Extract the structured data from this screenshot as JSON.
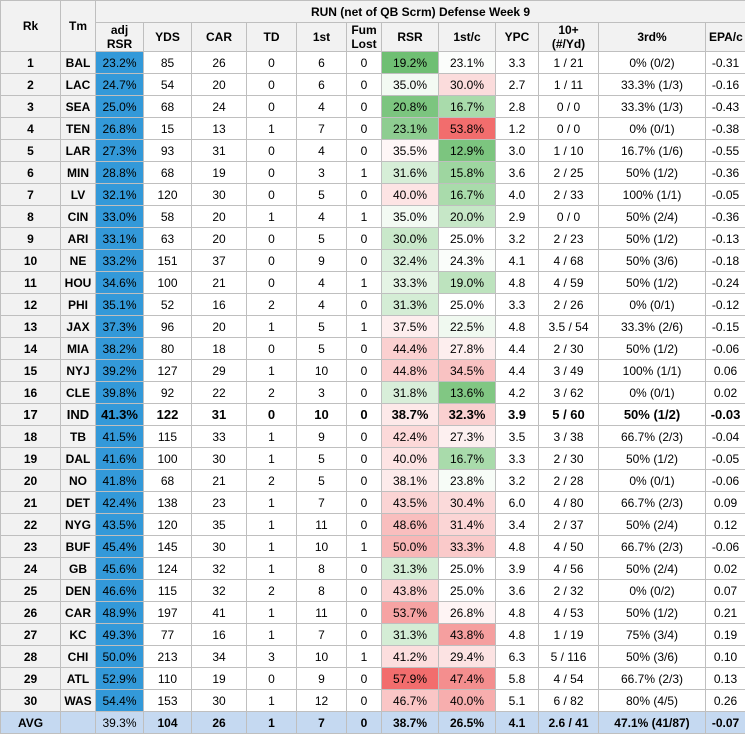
{
  "title": "RUN (net of QB Scrm) Defense Week 9",
  "headers": {
    "rk": "Rk",
    "tm": "Tm",
    "adj_rsr_1": "adj",
    "adj_rsr_2": "RSR",
    "yds": "YDS",
    "car": "CAR",
    "td": "TD",
    "first": "1st",
    "fum_1": "Fum",
    "fum_2": "Lost",
    "rsr": "RSR",
    "first_c": "1st/c",
    "ypc": "YPC",
    "ten_1": "10+",
    "ten_2": "(#/Yd)",
    "third": "3rd%",
    "epa": "EPA/c"
  },
  "rows": [
    {
      "rk": "1",
      "tm": "BAL",
      "adj": "23.2%",
      "yds": "85",
      "car": "26",
      "td": "0",
      "first": "6",
      "fum": "0",
      "rsr": "19.2%",
      "fc": "23.1%",
      "ypc": "3.3",
      "ten": "1 / 21",
      "third": "0% (0/2)",
      "epa": "-0.31",
      "rsr_bg": "#6fbf73",
      "fc_bg": "#fbfdfb"
    },
    {
      "rk": "2",
      "tm": "LAC",
      "adj": "24.7%",
      "yds": "54",
      "car": "20",
      "td": "0",
      "first": "6",
      "fum": "0",
      "rsr": "35.0%",
      "fc": "30.0%",
      "ypc": "2.7",
      "ten": "1 / 11",
      "third": "33.3% (1/3)",
      "epa": "-0.16",
      "rsr_bg": "#f3faf3",
      "fc_bg": "#fbdcdc"
    },
    {
      "rk": "3",
      "tm": "SEA",
      "adj": "25.0%",
      "yds": "68",
      "car": "24",
      "td": "0",
      "first": "4",
      "fum": "0",
      "rsr": "20.8%",
      "fc": "16.7%",
      "ypc": "2.8",
      "ten": "0 / 0",
      "third": "33.3% (1/3)",
      "epa": "-0.43",
      "rsr_bg": "#7cc57f",
      "fc_bg": "#a9dbab"
    },
    {
      "rk": "4",
      "tm": "TEN",
      "adj": "26.8%",
      "yds": "15",
      "car": "13",
      "td": "1",
      "first": "7",
      "fum": "0",
      "rsr": "23.1%",
      "fc": "53.8%",
      "ypc": "1.2",
      "ten": "0 / 0",
      "third": "0% (0/1)",
      "epa": "-0.38",
      "rsr_bg": "#8ecd91",
      "fc_bg": "#f26d6d"
    },
    {
      "rk": "5",
      "tm": "LAR",
      "adj": "27.3%",
      "yds": "93",
      "car": "31",
      "td": "0",
      "first": "4",
      "fum": "0",
      "rsr": "35.5%",
      "fc": "12.9%",
      "ypc": "3.0",
      "ten": "1 / 10",
      "third": "16.7% (1/6)",
      "epa": "-0.55",
      "rsr_bg": "#fef6f6",
      "fc_bg": "#7cc57f"
    },
    {
      "rk": "6",
      "tm": "MIN",
      "adj": "28.8%",
      "yds": "68",
      "car": "19",
      "td": "0",
      "first": "3",
      "fum": "1",
      "rsr": "31.6%",
      "fc": "15.8%",
      "ypc": "3.6",
      "ten": "2 / 25",
      "third": "50% (1/2)",
      "epa": "-0.36",
      "rsr_bg": "#d6eed7",
      "fc_bg": "#9ed6a0"
    },
    {
      "rk": "7",
      "tm": "LV",
      "adj": "32.1%",
      "yds": "120",
      "car": "30",
      "td": "0",
      "first": "5",
      "fum": "0",
      "rsr": "40.0%",
      "fc": "16.7%",
      "ypc": "4.0",
      "ten": "2 / 33",
      "third": "100% (1/1)",
      "epa": "-0.05",
      "rsr_bg": "#fde4e4",
      "fc_bg": "#a9dbab"
    },
    {
      "rk": "8",
      "tm": "CIN",
      "adj": "33.0%",
      "yds": "58",
      "car": "20",
      "td": "1",
      "first": "4",
      "fum": "1",
      "rsr": "35.0%",
      "fc": "20.0%",
      "ypc": "2.9",
      "ten": "0 / 0",
      "third": "50% (2/4)",
      "epa": "-0.36",
      "rsr_bg": "#f3faf3",
      "fc_bg": "#c6e7c7"
    },
    {
      "rk": "9",
      "tm": "ARI",
      "adj": "33.1%",
      "yds": "63",
      "car": "20",
      "td": "0",
      "first": "5",
      "fum": "0",
      "rsr": "30.0%",
      "fc": "25.0%",
      "ypc": "3.2",
      "ten": "2 / 23",
      "third": "50% (1/2)",
      "epa": "-0.13",
      "rsr_bg": "#c9e8ca",
      "fc_bg": "#ffffff"
    },
    {
      "rk": "10",
      "tm": "NE",
      "adj": "33.2%",
      "yds": "151",
      "car": "37",
      "td": "0",
      "first": "9",
      "fum": "0",
      "rsr": "32.4%",
      "fc": "24.3%",
      "ypc": "4.1",
      "ten": "4 / 68",
      "third": "50% (3/6)",
      "epa": "-0.18",
      "rsr_bg": "#dcf0dd",
      "fc_bg": "#fafdfa"
    },
    {
      "rk": "11",
      "tm": "HOU",
      "adj": "34.6%",
      "yds": "100",
      "car": "21",
      "td": "0",
      "first": "4",
      "fum": "1",
      "rsr": "33.3%",
      "fc": "19.0%",
      "ypc": "4.8",
      "ten": "4 / 59",
      "third": "50% (1/2)",
      "epa": "-0.24",
      "rsr_bg": "#e5f4e5",
      "fc_bg": "#bde3be"
    },
    {
      "rk": "12",
      "tm": "PHI",
      "adj": "35.1%",
      "yds": "52",
      "car": "16",
      "td": "2",
      "first": "4",
      "fum": "0",
      "rsr": "31.3%",
      "fc": "25.0%",
      "ypc": "3.3",
      "ten": "2 / 26",
      "third": "0% (0/1)",
      "epa": "-0.12",
      "rsr_bg": "#d4edd5",
      "fc_bg": "#ffffff"
    },
    {
      "rk": "13",
      "tm": "JAX",
      "adj": "37.3%",
      "yds": "96",
      "car": "20",
      "td": "1",
      "first": "5",
      "fum": "1",
      "rsr": "37.5%",
      "fc": "22.5%",
      "ypc": "4.8",
      "ten": "3.5 / 54",
      "third": "33.3% (2/6)",
      "epa": "-0.15",
      "rsr_bg": "#fdeeee",
      "fc_bg": "#f0f9f0"
    },
    {
      "rk": "14",
      "tm": "MIA",
      "adj": "38.2%",
      "yds": "80",
      "car": "18",
      "td": "0",
      "first": "5",
      "fum": "0",
      "rsr": "44.4%",
      "fc": "27.8%",
      "ypc": "4.4",
      "ten": "2 / 30",
      "third": "50% (1/2)",
      "epa": "-0.06",
      "rsr_bg": "#fbd0d0",
      "fc_bg": "#fdeeee"
    },
    {
      "rk": "15",
      "tm": "NYJ",
      "adj": "39.2%",
      "yds": "127",
      "car": "29",
      "td": "1",
      "first": "10",
      "fum": "0",
      "rsr": "44.8%",
      "fc": "34.5%",
      "ypc": "4.4",
      "ten": "3 / 49",
      "third": "100% (1/1)",
      "epa": "0.06",
      "rsr_bg": "#fbcece",
      "fc_bg": "#f9c2c2"
    },
    {
      "rk": "16",
      "tm": "CLE",
      "adj": "39.8%",
      "yds": "92",
      "car": "22",
      "td": "2",
      "first": "3",
      "fum": "0",
      "rsr": "31.8%",
      "fc": "13.6%",
      "ypc": "4.2",
      "ten": "3 / 62",
      "third": "0% (0/1)",
      "epa": "0.02",
      "rsr_bg": "#d8eed9",
      "fc_bg": "#81c783"
    },
    {
      "rk": "17",
      "tm": "IND",
      "adj": "41.3%",
      "yds": "122",
      "car": "31",
      "td": "0",
      "first": "10",
      "fum": "0",
      "rsr": "38.7%",
      "fc": "32.3%",
      "ypc": "3.9",
      "ten": "5 / 60",
      "third": "50% (1/2)",
      "epa": "-0.03",
      "rsr_bg": "#fde9e9",
      "fc_bg": "#fad0d0",
      "hl": true
    },
    {
      "rk": "18",
      "tm": "TB",
      "adj": "41.5%",
      "yds": "115",
      "car": "33",
      "td": "1",
      "first": "9",
      "fum": "0",
      "rsr": "42.4%",
      "fc": "27.3%",
      "ypc": "3.5",
      "ten": "3 / 38",
      "third": "66.7% (2/3)",
      "epa": "-0.04",
      "rsr_bg": "#fcd9d9",
      "fc_bg": "#fdf0f0"
    },
    {
      "rk": "19",
      "tm": "DAL",
      "adj": "41.6%",
      "yds": "100",
      "car": "30",
      "td": "1",
      "first": "5",
      "fum": "0",
      "rsr": "40.0%",
      "fc": "16.7%",
      "ypc": "3.3",
      "ten": "2 / 30",
      "third": "50% (1/2)",
      "epa": "-0.05",
      "rsr_bg": "#fde4e4",
      "fc_bg": "#a9dbab"
    },
    {
      "rk": "20",
      "tm": "NO",
      "adj": "41.8%",
      "yds": "68",
      "car": "21",
      "td": "2",
      "first": "5",
      "fum": "0",
      "rsr": "38.1%",
      "fc": "23.8%",
      "ypc": "3.2",
      "ten": "2 / 28",
      "third": "0% (0/1)",
      "epa": "-0.06",
      "rsr_bg": "#fdebeb",
      "fc_bg": "#f7fcf7"
    },
    {
      "rk": "21",
      "tm": "DET",
      "adj": "42.4%",
      "yds": "138",
      "car": "23",
      "td": "1",
      "first": "7",
      "fum": "0",
      "rsr": "43.5%",
      "fc": "30.4%",
      "ypc": "6.0",
      "ten": "4 / 80",
      "third": "66.7% (2/3)",
      "epa": "0.09",
      "rsr_bg": "#fbd4d4",
      "fc_bg": "#fbdada"
    },
    {
      "rk": "22",
      "tm": "NYG",
      "adj": "43.5%",
      "yds": "120",
      "car": "35",
      "td": "1",
      "first": "11",
      "fum": "0",
      "rsr": "48.6%",
      "fc": "31.4%",
      "ypc": "3.4",
      "ten": "2 / 37",
      "third": "50% (2/4)",
      "epa": "0.12",
      "rsr_bg": "#f9bebe",
      "fc_bg": "#fbd5d5"
    },
    {
      "rk": "23",
      "tm": "BUF",
      "adj": "45.4%",
      "yds": "145",
      "car": "30",
      "td": "1",
      "first": "10",
      "fum": "1",
      "rsr": "50.0%",
      "fc": "33.3%",
      "ypc": "4.8",
      "ten": "4 / 50",
      "third": "66.7% (2/3)",
      "epa": "-0.06",
      "rsr_bg": "#f8b7b7",
      "fc_bg": "#faca ca"
    },
    {
      "rk": "24",
      "tm": "GB",
      "adj": "45.6%",
      "yds": "124",
      "car": "32",
      "td": "1",
      "first": "8",
      "fum": "0",
      "rsr": "31.3%",
      "fc": "25.0%",
      "ypc": "3.9",
      "ten": "4 / 56",
      "third": "50% (2/4)",
      "epa": "0.02",
      "rsr_bg": "#d4edd5",
      "fc_bg": "#ffffff"
    },
    {
      "rk": "25",
      "tm": "DEN",
      "adj": "46.6%",
      "yds": "115",
      "car": "32",
      "td": "2",
      "first": "8",
      "fum": "0",
      "rsr": "43.8%",
      "fc": "25.0%",
      "ypc": "3.6",
      "ten": "2 / 32",
      "third": "0% (0/2)",
      "epa": "0.07",
      "rsr_bg": "#fbd3d3",
      "fc_bg": "#ffffff"
    },
    {
      "rk": "26",
      "tm": "CAR",
      "adj": "48.9%",
      "yds": "197",
      "car": "41",
      "td": "1",
      "first": "11",
      "fum": "0",
      "rsr": "53.7%",
      "fc": "26.8%",
      "ypc": "4.8",
      "ten": "4 / 53",
      "third": "50% (1/2)",
      "epa": "0.21",
      "rsr_bg": "#f6a3a3",
      "fc_bg": "#fef4f4"
    },
    {
      "rk": "27",
      "tm": "KC",
      "adj": "49.3%",
      "yds": "77",
      "car": "16",
      "td": "1",
      "first": "7",
      "fum": "0",
      "rsr": "31.3%",
      "fc": "43.8%",
      "ypc": "4.8",
      "ten": "1 / 19",
      "third": "75% (3/4)",
      "epa": "0.19",
      "rsr_bg": "#d4edd5",
      "fc_bg": "#f59f9f"
    },
    {
      "rk": "28",
      "tm": "CHI",
      "adj": "50.0%",
      "yds": "213",
      "car": "34",
      "td": "3",
      "first": "10",
      "fum": "1",
      "rsr": "41.2%",
      "fc": "29.4%",
      "ypc": "6.3",
      "ten": "5 / 116",
      "third": "50% (3/6)",
      "epa": "0.10",
      "rsr_bg": "#fcdede",
      "fc_bg": "#fce3e3"
    },
    {
      "rk": "29",
      "tm": "ATL",
      "adj": "52.9%",
      "yds": "110",
      "car": "19",
      "td": "0",
      "first": "9",
      "fum": "0",
      "rsr": "57.9%",
      "fc": "47.4%",
      "ypc": "5.8",
      "ten": "4 / 54",
      "third": "66.7% (2/3)",
      "epa": "0.13",
      "rsr_bg": "#f26d6d",
      "fc_bg": "#f48e8e"
    },
    {
      "rk": "30",
      "tm": "WAS",
      "adj": "54.4%",
      "yds": "153",
      "car": "30",
      "td": "1",
      "first": "12",
      "fum": "0",
      "rsr": "46.7%",
      "fc": "40.0%",
      "ypc": "5.1",
      "ten": "6 / 82",
      "third": "80% (4/5)",
      "epa": "0.26",
      "rsr_bg": "#fac6c6",
      "fc_bg": "#f7aeae"
    }
  ],
  "avg": {
    "rk": "AVG",
    "tm": "",
    "adj": "39.3%",
    "yds": "104",
    "car": "26",
    "td": "1",
    "first": "7",
    "fum": "0",
    "rsr": "38.7%",
    "fc": "26.5%",
    "ypc": "4.1",
    "ten": "2.6 / 41",
    "third": "47.1% (41/87)",
    "epa": "-0.07"
  }
}
